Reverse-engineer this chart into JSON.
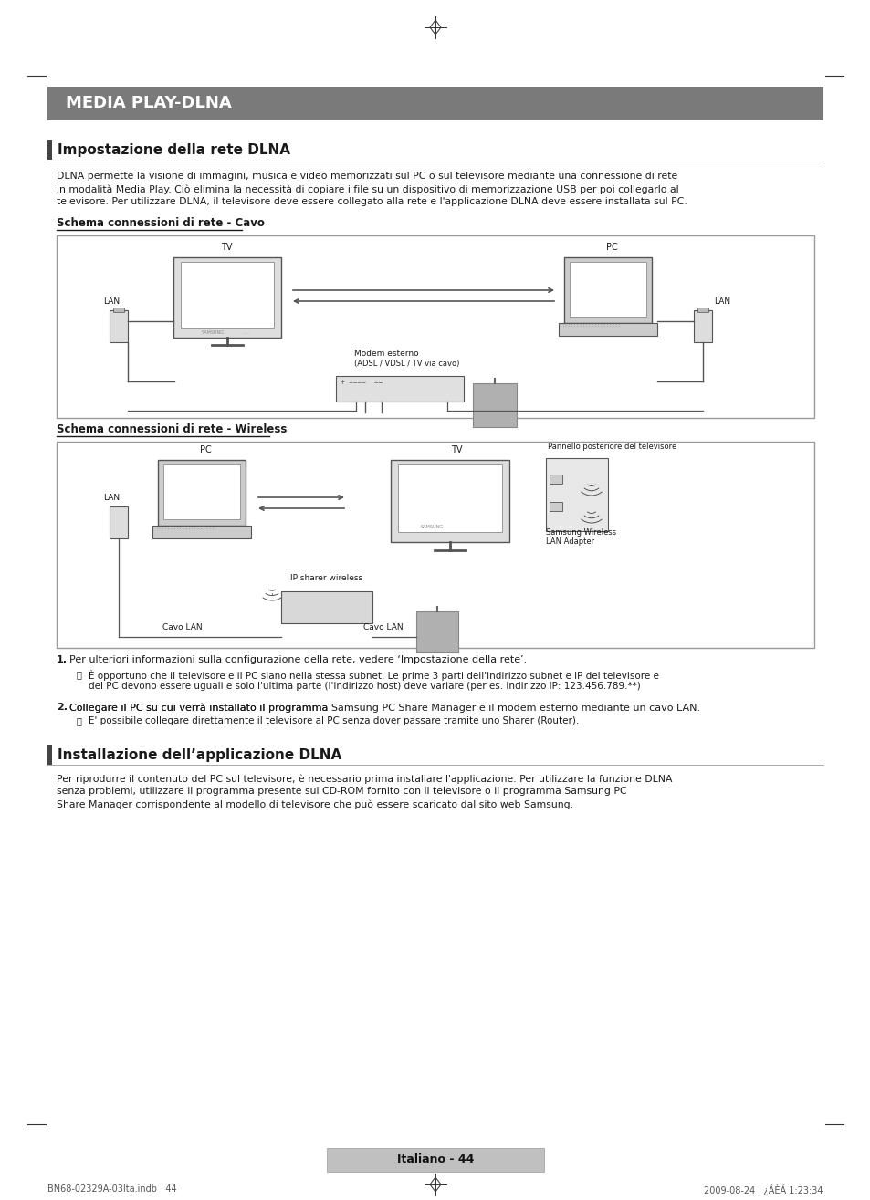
{
  "page_bg": "#ffffff",
  "header_bg": "#7a7a7a",
  "header_text": "MEDIA PLAY-DLNA",
  "header_text_color": "#ffffff",
  "section1_title": "Impostazione della rete DLNA",
  "section1_bar_color": "#444444",
  "section1_body_line1": "DLNA permette la visione di immagini, musica e video memorizzati sul PC o sul televisore mediante una connessione di rete",
  "section1_body_line2": "in modalità Media Play. Ciò elimina la necessità di copiare i file su un dispositivo di memorizzazione USB per poi collegarlo al",
  "section1_body_line3": "televisore. Per utilizzare DLNA, il televisore deve essere collegato alla rete e l'applicazione DLNA deve essere installata sul PC.",
  "subsection1_title": "Schema connessioni di rete - Cavo",
  "subsection2_title": "Schema connessioni di rete - Wireless",
  "section2_title": "Installazione dell’applicazione DLNA",
  "section2_bar_color": "#444444",
  "section2_body_line1": "Per riprodurre il contenuto del PC sul televisore, è necessario prima installare l'applicazione. Per utilizzare la funzione DLNA",
  "section2_body_line2": "senza problemi, utilizzare il programma presente sul CD-ROM fornito con il televisore o il programma Samsung PC",
  "section2_body_line3": "Share Manager corrispondente al modello di televisore che può essere scaricato dal sito web Samsung.",
  "item1_num": "1.",
  "item1_text": "Per ulteriori informazioni sulla configurazione della rete, vedere ‘Impostazione della rete’.",
  "item1_note_line1": "È opportuno che il televisore e il PC siano nella stessa subnet. Le prime 3 parti dell'indirizzo subnet e IP del televisore e",
  "item1_note_line2": "del PC devono essere uguali e solo l'ultima parte (l'indirizzo host) deve variare (per es. Indirizzo IP: 123.456.789.**)",
  "item2_num": "2.",
  "item2_pre": "Collegare il PC su cui verrà installato il programma ",
  "item2_bold": "Samsung PC Share Manager",
  "item2_post": " e il modem esterno mediante un cavo LAN.",
  "item2_note": "E' possibile collegare direttamente il televisore al PC senza dover passare tramite uno Sharer (Router).",
  "footer_text": "Italiano - 44",
  "footer_meta": "BN68-02329A-03Ita.indb   44",
  "footer_date": "2009-08-24   ¿ÁÈÁ 1:23:34",
  "text_color": "#1a1a1a",
  "box_border_color": "#999999",
  "gray_device": "#cccccc",
  "dark_gray": "#555555"
}
